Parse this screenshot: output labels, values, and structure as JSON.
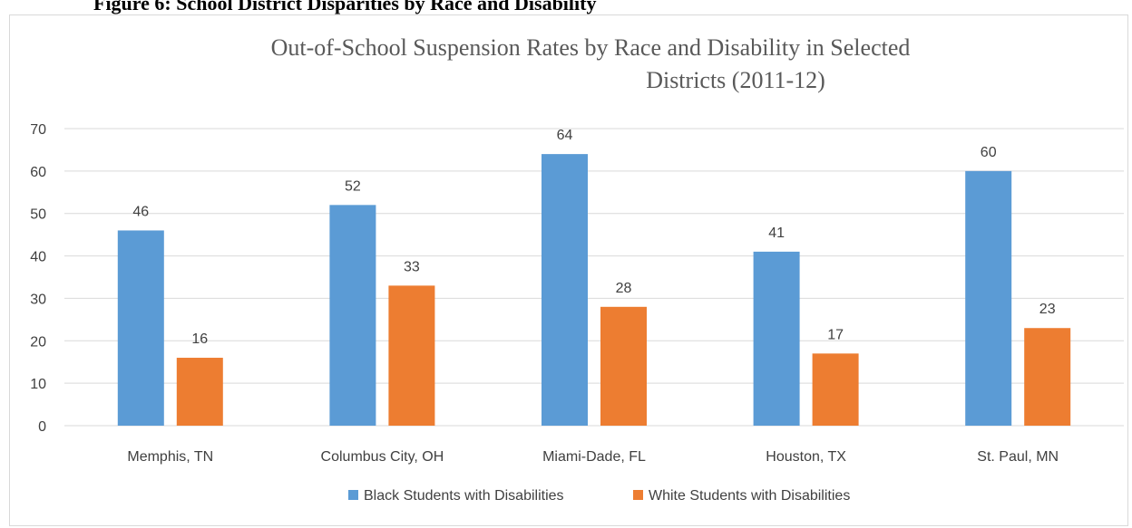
{
  "figure_caption": "Figure 6: School District Disparities by Race and Disability",
  "chart_data": {
    "type": "bar",
    "title_lines": [
      "Out-of-School Suspension Rates by Race and Disability in Selected",
      "Districts (2011-12)"
    ],
    "categories": [
      "Memphis, TN",
      "Columbus City, OH",
      "Miami-Dade, FL",
      "Houston, TX",
      "St. Paul, MN"
    ],
    "series": [
      {
        "name": "Black Students with Disabilities",
        "values": [
          46,
          52,
          64,
          41,
          60
        ],
        "color": "#5b9bd5"
      },
      {
        "name": "White Students with Disabilities",
        "values": [
          16,
          33,
          28,
          17,
          23
        ],
        "color": "#ed7d31"
      }
    ],
    "ylim": [
      0,
      70
    ],
    "yticks": [
      0,
      10,
      20,
      30,
      40,
      50,
      60,
      70
    ],
    "grid": true,
    "legend_position": "bottom"
  }
}
